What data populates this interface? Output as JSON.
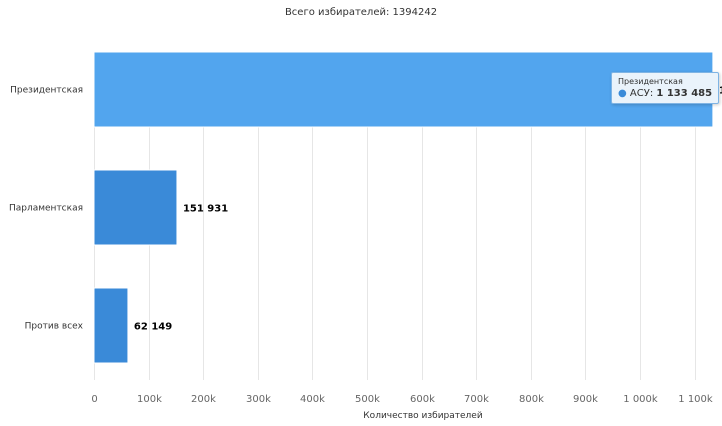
{
  "chart_data": {
    "type": "bar",
    "orientation": "horizontal",
    "title": "Всего избирателей: 1394242",
    "xlabel": "Количество избирателей",
    "ylabel": "",
    "categories": [
      "Президентская",
      "Парламентская",
      "Против всех"
    ],
    "values": [
      1133485,
      151931,
      62149
    ],
    "data_labels": [
      "1 133 485",
      "151 931",
      "62 149"
    ],
    "xlim": [
      0,
      1133485
    ],
    "xticks": [
      0,
      100000,
      200000,
      300000,
      400000,
      500000,
      600000,
      700000,
      800000,
      900000,
      1000000,
      1100000
    ],
    "xtick_labels": [
      "0",
      "100k",
      "200k",
      "300k",
      "400k",
      "500k",
      "600k",
      "700k",
      "800k",
      "900k",
      "1 000k",
      "1 100k"
    ],
    "grid": true,
    "colors": {
      "highlight": "#52a5ee",
      "bar": "#3a8ad8"
    }
  },
  "tooltip": {
    "category": "Президентская",
    "series": "АСУ",
    "value": "1 133 485"
  }
}
